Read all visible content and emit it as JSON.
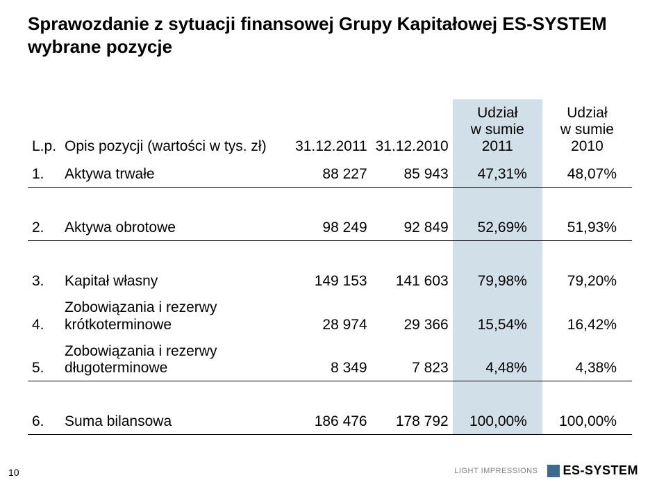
{
  "title": {
    "line1_prefix": "Sprawozdanie z sytuacji finansowej Grupy Kapitałowej ",
    "brand": "ES-SYSTEM",
    "line2": "wybrane pozycje"
  },
  "header": {
    "lp": "L.p.",
    "name": "Opis pozycji (wartości w tys. zł)",
    "c1": "31.12.2011",
    "c2": "31.12.2010",
    "s1a": "Udział",
    "s1b": "w sumie",
    "s1c": "2011",
    "s2a": "Udział",
    "s2b": "w sumie",
    "s2c": "2010"
  },
  "rows": [
    {
      "lp": "1.",
      "name": "Aktywa trwałe",
      "v1": "88 227",
      "v2": "85 943",
      "s1": "47,31%",
      "s2": "48,07%",
      "sep": true
    },
    {
      "lp": "2.",
      "name": "Aktywa obrotowe",
      "v1": "98 249",
      "v2": "92 849",
      "s1": "52,69%",
      "s2": "51,93%",
      "sep": true
    },
    {
      "lp": "3.",
      "name": "Kapitał własny",
      "v1": "149 153",
      "v2": "141 603",
      "s1": "79,98%",
      "s2": "79,20%",
      "sep": false
    },
    {
      "lp": "4.",
      "name_a": "Zobowiązania i rezerwy",
      "name_b": "krótkoterminowe",
      "v1": "28 974",
      "v2": "29 366",
      "s1": "15,54%",
      "s2": "16,42%",
      "sep": false,
      "two": true
    },
    {
      "lp": "5.",
      "name_a": "Zobowiązania i rezerwy",
      "name_b": "długoterminowe",
      "v1": "8 349",
      "v2": "7 823",
      "s1": "4,48%",
      "s2": "4,38%",
      "sep": true,
      "two": true
    },
    {
      "lp": "6.",
      "name": "Suma bilansowa",
      "v1": "186 476",
      "v2": "178 792",
      "s1": "100,00%",
      "s2": "100,00%",
      "sep": true
    }
  ],
  "footer": {
    "page": "10",
    "light": "LIGHT IMPRESSIONS",
    "brand": "ES-SYSTEM",
    "brand_color": "#3a6b8c"
  },
  "colors": {
    "highlight": "#d0dfe8",
    "text": "#000000",
    "muted": "#7f7f7f",
    "background": "#ffffff"
  }
}
